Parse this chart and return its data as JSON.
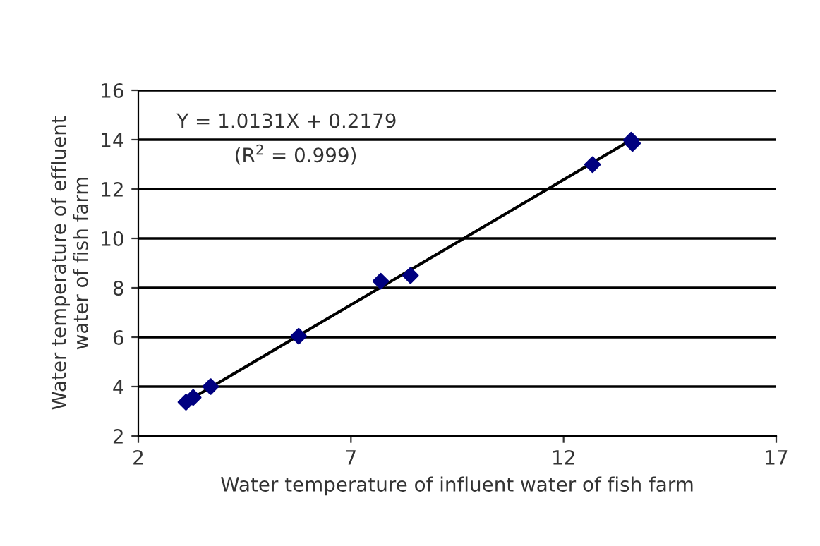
{
  "chart_data": {
    "type": "scatter",
    "xlabel": "Water temperature of influent water of fish farm",
    "ylabel": "Water temperature of effluent\nwater of fish farm",
    "series": [
      {
        "color": "#000080",
        "marker": "diamond",
        "x": [
          3.12,
          3.29,
          3.7,
          5.77,
          7.7,
          8.4,
          12.68,
          13.59,
          13.62
        ],
        "values": [
          3.37,
          3.56,
          4.0,
          6.04,
          8.27,
          8.5,
          12.99,
          13.98,
          13.85
        ]
      },
      {
        "type": "line",
        "color": "#000000",
        "x": [
          3.12,
          13.6
        ],
        "values": [
          3.38,
          14.0
        ]
      }
    ],
    "annotations": [
      "Y = 1.0131X + 0.2179",
      "(R$^{2}$ = 0.999)"
    ],
    "xlim": [
      2,
      17
    ],
    "xticks": [
      2,
      7,
      12,
      17
    ],
    "ylim": [
      2,
      16
    ],
    "yticks": [
      2,
      4,
      6,
      8,
      10,
      12,
      14,
      16
    ],
    "grid": "y",
    "legend": false
  }
}
